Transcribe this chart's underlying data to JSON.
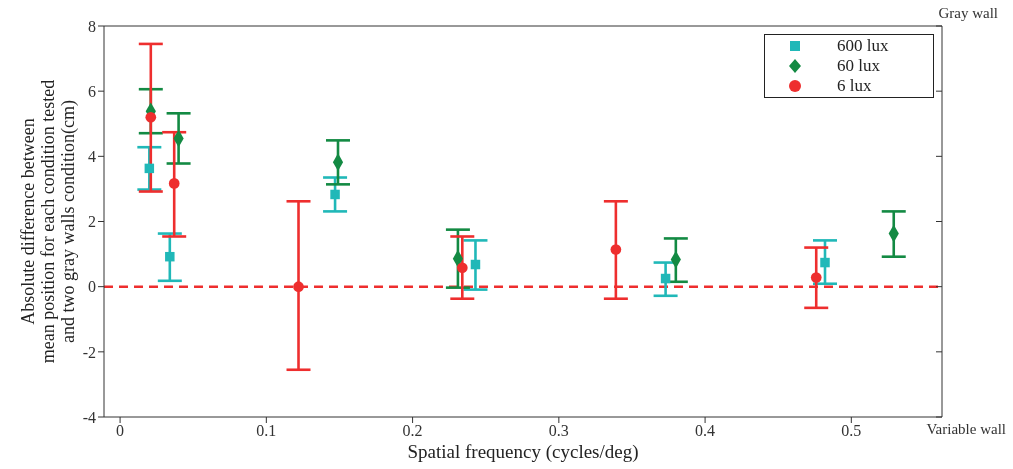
{
  "chart_data": {
    "type": "scatter",
    "xlabel": "Spatial frequency (cycles/deg)",
    "ylabel": "Absolute difference between\nmean position for each condition tested\nand two gray walls condition(cm)",
    "xlim": [
      -0.011,
      0.562
    ],
    "xticks": [
      0,
      0.1,
      0.2,
      0.3,
      0.4,
      0.5
    ],
    "ylim": [
      -4,
      8
    ],
    "yticks": [
      -4,
      -2,
      0,
      2,
      4,
      6,
      8
    ],
    "legend": "top right",
    "annotations": [
      "Gray wall",
      "Variable wall"
    ],
    "ref_lines": [
      {
        "axis": "y",
        "value": 0,
        "color": "#ee2e2e",
        "line_style": "dashed"
      }
    ],
    "series": [
      {
        "name": "600 lux",
        "color": "#20b8b8",
        "marker": "square",
        "x": [
          0.02,
          0.034,
          0.147,
          0.243,
          0.373,
          0.482
        ],
        "values": [
          3.63,
          0.92,
          2.83,
          0.68,
          0.25,
          0.74
        ],
        "errors": [
          [
            2.98,
            4.28
          ],
          [
            0.18,
            1.63
          ],
          [
            2.31,
            3.35
          ],
          [
            -0.09,
            1.42
          ],
          [
            -0.28,
            0.74
          ],
          [
            0.09,
            1.42
          ]
        ]
      },
      {
        "name": "60 lux",
        "color": "#138a43",
        "marker": "diamond",
        "x": [
          0.021,
          0.04,
          0.149,
          0.231,
          0.38,
          0.529
        ],
        "values": [
          5.38,
          4.55,
          3.82,
          0.86,
          0.83,
          1.63
        ],
        "errors": [
          [
            4.71,
            6.06
          ],
          [
            3.78,
            5.32
          ],
          [
            3.14,
            4.49
          ],
          [
            -0.03,
            1.75
          ],
          [
            0.15,
            1.48
          ],
          [
            0.92,
            2.31
          ]
        ]
      },
      {
        "name": "6 lux",
        "color": "#ee2e2e",
        "marker": "circle",
        "x": [
          0.021,
          0.037,
          0.122,
          0.234,
          0.339,
          0.476
        ],
        "values": [
          5.2,
          3.17,
          0,
          0.58,
          1.14,
          0.28
        ],
        "errors": [
          [
            2.92,
            7.45
          ],
          [
            1.54,
            4.74
          ],
          [
            -2.55,
            2.62
          ],
          [
            -0.37,
            1.54
          ],
          [
            -0.37,
            2.62
          ],
          [
            -0.65,
            1.2
          ]
        ]
      }
    ]
  }
}
